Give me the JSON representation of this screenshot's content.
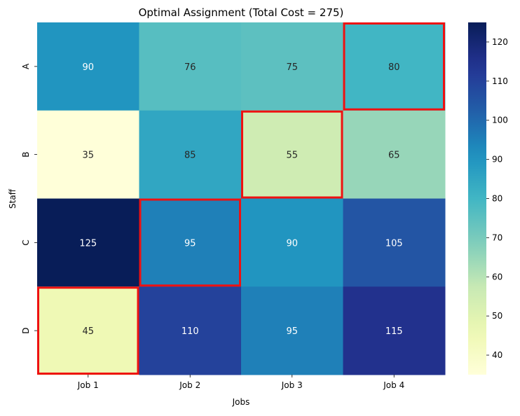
{
  "chart_data": {
    "type": "heatmap",
    "title": "Optimal Assignment (Total Cost = 275)",
    "xlabel": "Jobs",
    "ylabel": "Staff",
    "x_categories": [
      "Job 1",
      "Job 2",
      "Job 3",
      "Job 4"
    ],
    "y_categories": [
      "A",
      "B",
      "C",
      "D"
    ],
    "values": [
      [
        90,
        76,
        75,
        80
      ],
      [
        35,
        85,
        55,
        65
      ],
      [
        125,
        95,
        90,
        105
      ],
      [
        45,
        110,
        95,
        115
      ]
    ],
    "highlighted_cells": [
      {
        "row": "A",
        "col": "Job 4"
      },
      {
        "row": "B",
        "col": "Job 3"
      },
      {
        "row": "C",
        "col": "Job 2"
      },
      {
        "row": "D",
        "col": "Job 1"
      }
    ],
    "highlight_color": "#ee1111",
    "colormap": "YlGnBu",
    "colorbar": {
      "range": [
        35,
        125
      ],
      "ticks": [
        40,
        50,
        60,
        70,
        80,
        90,
        100,
        110,
        120
      ]
    }
  }
}
